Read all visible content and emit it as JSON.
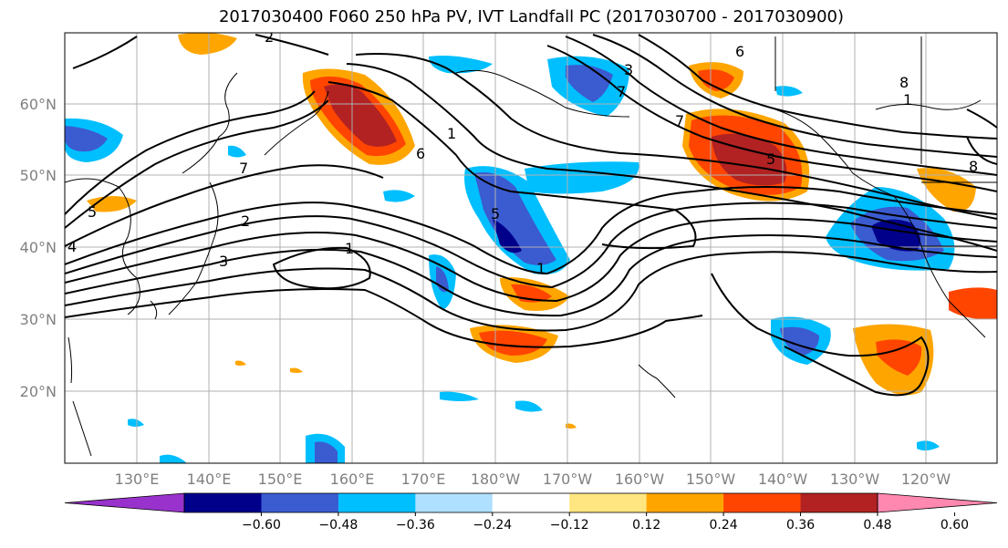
{
  "title": "2017030400 F060 250 hPa PV, IVT Landfall PC (2017030700 - 2017030900)",
  "lat_labels": [
    "60°N",
    "50°N",
    "40°N",
    "30°N",
    "20°N"
  ],
  "lon_labels": [
    "130°E",
    "140°E",
    "150°E",
    "160°E",
    "170°E",
    "180°W",
    "170°W",
    "160°W",
    "150°W",
    "140°W",
    "130°W",
    "120°W"
  ],
  "colorbar": {
    "tick_labels": [
      "−0.60",
      "−0.48",
      "−0.36",
      "−0.24",
      "−0.12",
      "0.12",
      "0.24",
      "0.36",
      "0.48",
      "0.60"
    ],
    "colors": [
      "#9932cc",
      "#00008b",
      "#3b5bd0",
      "#00bfff",
      "#b0e0ff",
      "#ffffff",
      "#ffe680",
      "#ffa500",
      "#ff4500",
      "#b22222",
      "#ff88b0"
    ]
  },
  "contour_labels": [
    "2",
    "6",
    "8",
    "1",
    "7",
    "5",
    "7",
    "6",
    "1",
    "7",
    "5",
    "1",
    "2",
    "3",
    "1",
    "8",
    "5",
    "3",
    "4"
  ]
}
